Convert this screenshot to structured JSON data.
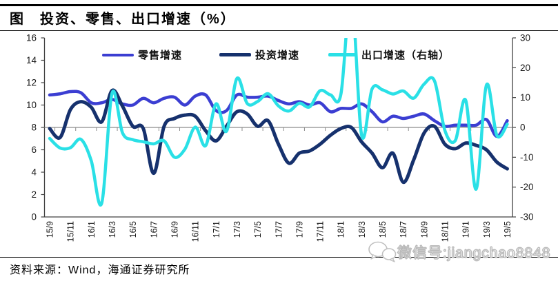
{
  "header": {
    "title": "图　投资、零售、出口增速（%）"
  },
  "footer": {
    "source": "资料来源：Wind，海通证券研究所"
  },
  "watermark": {
    "wechat_label": "微信号:jiangchao8848"
  },
  "chart_data": {
    "type": "line",
    "smoothed": true,
    "grid": "zero-line-only",
    "legend_position": "top-inside",
    "ylim_left": [
      0,
      16
    ],
    "ylim_right": [
      -30,
      30
    ],
    "left_axis_ticks": [
      "16",
      "14",
      "12",
      "10",
      "8",
      "6",
      "4",
      "2",
      "0"
    ],
    "right_axis_ticks": [
      "30",
      "20",
      "10",
      "0",
      "-10",
      "-20",
      "-30"
    ],
    "x_tick_labels": [
      "15/9",
      "15/11",
      "16/1",
      "16/3",
      "16/5",
      "16/7",
      "16/9",
      "16/11",
      "17/1",
      "17/3",
      "17/5",
      "17/7",
      "17/9",
      "17/11",
      "18/1",
      "18/3",
      "18/5",
      "18/7",
      "18/9",
      "18/11",
      "19/1",
      "19/3",
      "19/5"
    ],
    "x": [
      "15/9",
      "15/10",
      "15/11",
      "15/12",
      "16/1",
      "16/2",
      "16/3",
      "16/4",
      "16/5",
      "16/6",
      "16/7",
      "16/8",
      "16/9",
      "16/10",
      "16/11",
      "16/12",
      "17/1",
      "17/2",
      "17/3",
      "17/4",
      "17/5",
      "17/6",
      "17/7",
      "17/8",
      "17/9",
      "17/10",
      "17/11",
      "17/12",
      "18/1",
      "18/2",
      "18/3",
      "18/4",
      "18/5",
      "18/6",
      "18/7",
      "18/8",
      "18/9",
      "18/10",
      "18/11",
      "18/12",
      "19/1",
      "19/2",
      "19/3",
      "19/4",
      "19/5"
    ],
    "series": [
      {
        "name": "零售增速",
        "axis": "left",
        "color": "#3b3ed2",
        "width": 4.5,
        "values": [
          10.9,
          11.0,
          11.2,
          11.1,
          10.2,
          10.2,
          10.5,
          10.1,
          10.0,
          10.6,
          10.2,
          10.6,
          10.7,
          10.0,
          10.8,
          10.9,
          9.5,
          9.5,
          10.9,
          10.7,
          10.7,
          10.8,
          10.4,
          10.1,
          10.3,
          10.0,
          10.2,
          9.4,
          9.7,
          9.7,
          10.1,
          9.4,
          8.5,
          9.0,
          8.8,
          9.0,
          9.2,
          8.6,
          8.1,
          8.2,
          8.2,
          8.2,
          8.7,
          7.2,
          8.6
        ]
      },
      {
        "name": "投资增速",
        "axis": "left",
        "color": "#16316d",
        "width": 5,
        "values": [
          7.9,
          7.1,
          9.6,
          10.3,
          9.8,
          8.5,
          11.3,
          9.9,
          8.1,
          7.9,
          3.9,
          8.1,
          8.8,
          9.1,
          9.0,
          7.7,
          6.8,
          8.1,
          9.4,
          9.2,
          8.1,
          8.6,
          6.5,
          4.8,
          5.7,
          5.9,
          6.5,
          7.3,
          7.9,
          8.0,
          6.7,
          5.7,
          4.4,
          5.7,
          3.1,
          5.1,
          7.5,
          8.1,
          6.5,
          6.1,
          6.6,
          6.4,
          6.0,
          4.9,
          4.3
        ]
      },
      {
        "name": "出口增速（右轴）",
        "axis": "right",
        "color": "#2ae0e6",
        "width": 4.5,
        "values": [
          -3.7,
          -6.9,
          -6.8,
          -4.0,
          -11.2,
          -25.4,
          11.5,
          -1.8,
          -4.1,
          -4.8,
          -5.5,
          -4.5,
          -10.0,
          -7.3,
          0.1,
          -6.1,
          7.9,
          -1.3,
          16.4,
          8.0,
          8.7,
          11.3,
          7.2,
          5.5,
          8.1,
          6.9,
          12.3,
          10.9,
          11.1,
          44.5,
          -2.7,
          12.9,
          12.6,
          11.2,
          12.2,
          9.8,
          14.5,
          15.6,
          -1.0,
          -4.4,
          9.1,
          -20.7,
          14.2,
          -2.7,
          1.1
        ]
      }
    ],
    "colors": {
      "axis": "#404040",
      "zero_line": "#8c8c8c",
      "tick_label": "#1a1a1a"
    }
  }
}
